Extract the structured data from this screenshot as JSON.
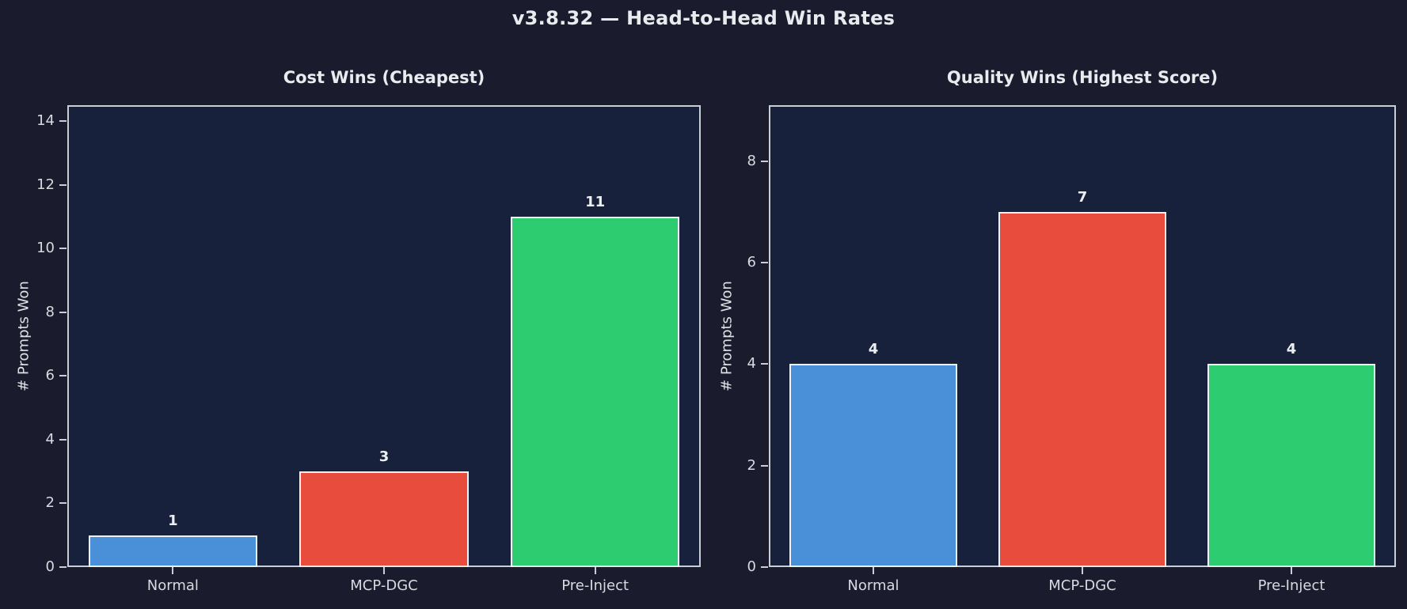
{
  "figure": {
    "suptitle": "v3.8.32 — Head-to-Head Win Rates",
    "background_color": "#1a1c2e",
    "axes_background_color": "#17213c",
    "frame_color": "#c9cdd4",
    "title_text_color": "#e9ebef",
    "tick_text_color": "#d8dadf"
  },
  "chart_data": [
    {
      "type": "bar",
      "title": "Cost Wins (Cheapest)",
      "xlabel": "",
      "ylabel": "# Prompts Won",
      "categories": [
        "Normal",
        "MCP-DGC",
        "Pre-Inject"
      ],
      "values": [
        1,
        3,
        11
      ],
      "bar_colors": [
        "#4a90d9",
        "#e74c3c",
        "#2ecc71"
      ],
      "bar_edge_color": "#eef0f3",
      "ylim": [
        0,
        14.5
      ],
      "yticks": [
        0,
        2,
        4,
        6,
        8,
        10,
        12,
        14
      ],
      "bar_width_fraction": 0.8,
      "grid": false,
      "legend": null
    },
    {
      "type": "bar",
      "title": "Quality Wins (Highest Score)",
      "xlabel": "",
      "ylabel": "# Prompts Won",
      "categories": [
        "Normal",
        "MCP-DGC",
        "Pre-Inject"
      ],
      "values": [
        4,
        7,
        4
      ],
      "bar_colors": [
        "#4a90d9",
        "#e74c3c",
        "#2ecc71"
      ],
      "bar_edge_color": "#eef0f3",
      "ylim": [
        0,
        9.1
      ],
      "yticks": [
        0,
        2,
        4,
        6,
        8
      ],
      "bar_width_fraction": 0.8,
      "grid": false,
      "legend": null
    }
  ]
}
